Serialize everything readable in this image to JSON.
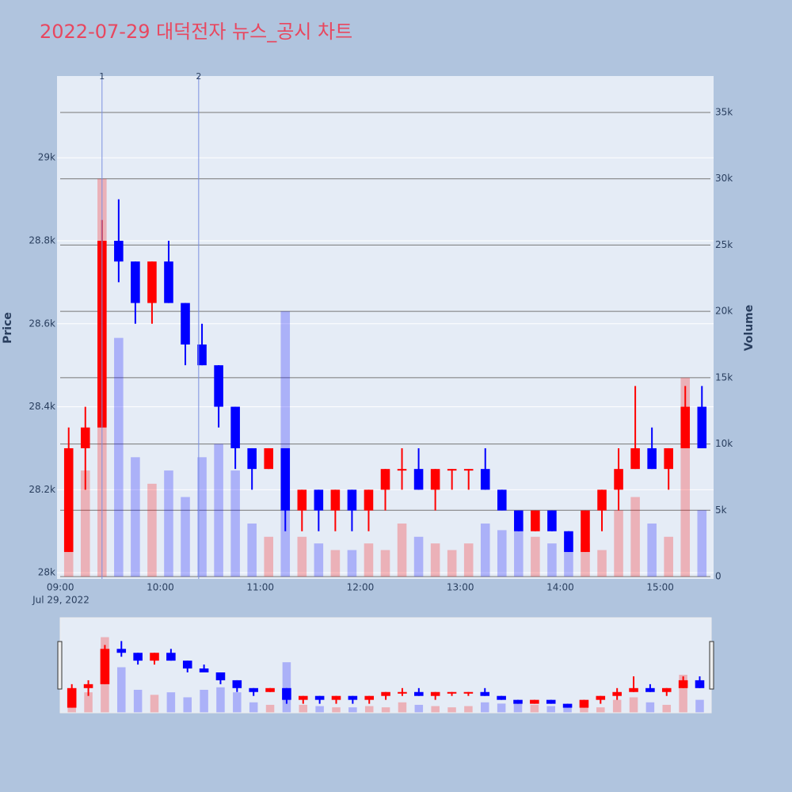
{
  "chart_data": {
    "type": "candlestick",
    "title": "2022-07-29 대덕전자 뉴스_공시 차트",
    "ylabel": "Price",
    "y2label": "Volume",
    "x_date_label": "Jul 29, 2022",
    "increasing_color": "red",
    "decreasing_color": "blue",
    "x": [
      "09:00",
      "09:10",
      "09:20",
      "09:30",
      "09:40",
      "09:50",
      "10:00",
      "10:10",
      "10:20",
      "10:30",
      "10:40",
      "10:50",
      "11:00",
      "11:10",
      "11:20",
      "11:30",
      "11:40",
      "11:50",
      "12:00",
      "12:10",
      "12:20",
      "12:30",
      "12:40",
      "12:50",
      "13:00",
      "13:10",
      "13:20",
      "13:30",
      "13:40",
      "13:50",
      "14:00",
      "14:10",
      "14:20",
      "14:30",
      "14:40",
      "14:50",
      "15:00",
      "15:10",
      "15:20"
    ],
    "open": [
      28050,
      28300,
      28350,
      28800,
      28750,
      28650,
      28750,
      28650,
      28550,
      28500,
      28400,
      28300,
      28250,
      28300,
      28150,
      28200,
      28150,
      28200,
      28150,
      28200,
      28250,
      28250,
      28200,
      28250,
      28250,
      28250,
      28200,
      28150,
      28100,
      28150,
      28100,
      28050,
      28150,
      28200,
      28250,
      28300,
      28250,
      28300,
      28400
    ],
    "high": [
      28350,
      28400,
      28850,
      28900,
      28750,
      28750,
      28800,
      28650,
      28600,
      28500,
      28400,
      28300,
      28300,
      28300,
      28200,
      28200,
      28200,
      28200,
      28200,
      28250,
      28300,
      28300,
      28250,
      28250,
      28250,
      28300,
      28200,
      28150,
      28150,
      28150,
      28100,
      28150,
      28200,
      28300,
      28450,
      28350,
      28300,
      28450,
      28450
    ],
    "low": [
      28050,
      28200,
      28350,
      28700,
      28600,
      28600,
      28650,
      28500,
      28500,
      28350,
      28250,
      28200,
      28250,
      28100,
      28100,
      28100,
      28100,
      28100,
      28100,
      28150,
      28200,
      28200,
      28150,
      28200,
      28200,
      28200,
      28150,
      28100,
      28100,
      28100,
      28050,
      28050,
      28100,
      28150,
      28250,
      28250,
      28200,
      28300,
      28300
    ],
    "close": [
      28300,
      28350,
      28800,
      28750,
      28650,
      28750,
      28650,
      28550,
      28500,
      28400,
      28300,
      28250,
      28300,
      28150,
      28200,
      28150,
      28200,
      28150,
      28200,
      28250,
      28250,
      28200,
      28250,
      28250,
      28250,
      28200,
      28150,
      28100,
      28150,
      28100,
      28050,
      28150,
      28200,
      28250,
      28300,
      28250,
      28300,
      28400,
      28300
    ],
    "volume": [
      6000,
      8000,
      30000,
      18000,
      9000,
      7000,
      8000,
      6000,
      9000,
      10000,
      8000,
      4000,
      3000,
      20000,
      3000,
      2500,
      2000,
      2000,
      2500,
      2000,
      4000,
      3000,
      2500,
      2000,
      2500,
      4000,
      3500,
      4000,
      3000,
      2500,
      3000,
      2500,
      2000,
      5000,
      6000,
      4000,
      3000,
      15000,
      5000
    ],
    "xlim": [
      "08:58",
      "15:32"
    ],
    "xticks": [
      "09:00",
      "10:00",
      "11:00",
      "12:00",
      "13:00",
      "14:00",
      "15:00"
    ],
    "ylim": [
      27985,
      29197
    ],
    "yticks": [
      {
        "value": 28000,
        "label": "28k"
      },
      {
        "value": 28200,
        "label": "28.2k"
      },
      {
        "value": 28400,
        "label": "28.4k"
      },
      {
        "value": 28600,
        "label": "28.6k"
      },
      {
        "value": 28800,
        "label": "28.8k"
      },
      {
        "value": 29000,
        "label": "29k"
      }
    ],
    "y2lim": [
      -179,
      37747
    ],
    "y2ticks": [
      0,
      {
        "value": 5000,
        "label": "5k"
      },
      {
        "value": 10000,
        "label": "10k"
      },
      {
        "value": 15000,
        "label": "15k"
      },
      {
        "value": 20000,
        "label": "20k"
      },
      {
        "value": 25000,
        "label": "25k"
      },
      {
        "value": 30000,
        "label": "30k"
      },
      {
        "value": 35000,
        "label": "35k"
      }
    ],
    "annotations": [
      {
        "x": "09:25",
        "text": "1"
      },
      {
        "x": "10:23",
        "text": "2"
      }
    ],
    "grid": true,
    "rangeslider": true
  }
}
